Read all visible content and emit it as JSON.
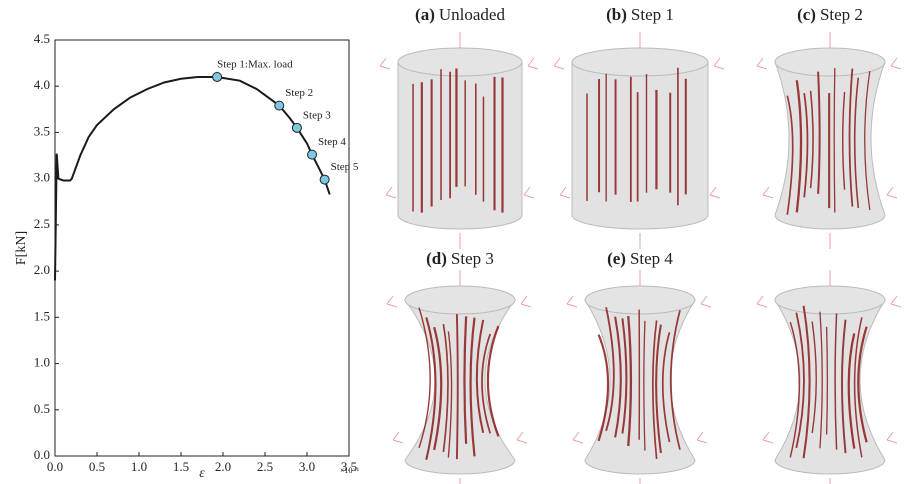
{
  "chart_data": {
    "type": "line",
    "x_label": "ε",
    "y_label": "F[kN]",
    "x_multiplier": "×10⁻¹",
    "x": [
      0.0,
      0.02,
      0.04,
      0.1,
      0.18,
      0.2,
      0.3,
      0.4,
      0.5,
      0.7,
      0.9,
      1.1,
      1.3,
      1.5,
      1.7,
      1.93,
      2.2,
      2.4,
      2.55,
      2.67,
      2.8,
      2.88,
      3.0,
      3.06,
      3.15,
      3.21,
      3.27
    ],
    "y": [
      1.9,
      3.27,
      3.0,
      2.98,
      2.98,
      3.0,
      3.25,
      3.45,
      3.58,
      3.75,
      3.88,
      3.97,
      4.04,
      4.08,
      4.1,
      4.1,
      4.06,
      3.97,
      3.87,
      3.79,
      3.65,
      3.55,
      3.38,
      3.26,
      3.1,
      2.99,
      2.83
    ],
    "color": "#1a1a1a",
    "markers": {
      "x": [
        1.93,
        2.67,
        2.88,
        3.06,
        3.21
      ],
      "y": [
        4.1,
        3.79,
        3.55,
        3.26,
        2.99
      ],
      "labels": [
        "Step 1:Max. load",
        "Step 2",
        "Step 3",
        "Step 4",
        "Step 5"
      ],
      "color": "#7ec8e3"
    },
    "xlim": [
      0,
      3.5
    ],
    "xticks": [
      {
        "value": 0,
        "label": "0.0"
      },
      {
        "value": 0.5,
        "label": "0.5"
      },
      {
        "value": 1,
        "label": "1.0"
      },
      {
        "value": 1.5,
        "label": "1.5"
      },
      {
        "value": 2,
        "label": "2.0"
      },
      {
        "value": 2.5,
        "label": "2.5"
      },
      {
        "value": 3,
        "label": "3.0"
      },
      {
        "value": 3.5,
        "label": "3.5"
      }
    ],
    "ylim": [
      0,
      4.5
    ],
    "yticks": [
      {
        "value": 0,
        "label": "0.0"
      },
      {
        "value": 0.5,
        "label": "0.5"
      },
      {
        "value": 1,
        "label": "1.0"
      },
      {
        "value": 1.5,
        "label": "1.5"
      },
      {
        "value": 2,
        "label": "2.0"
      },
      {
        "value": 2.5,
        "label": "2.5"
      },
      {
        "value": 3,
        "label": "3.0"
      },
      {
        "value": 3.5,
        "label": "3.5"
      },
      {
        "value": 4,
        "label": "4.0"
      },
      {
        "value": 4.5,
        "label": "4.5"
      }
    ]
  },
  "panels": [
    {
      "letter": "(a)",
      "title": "Unloaded"
    },
    {
      "letter": "(b)",
      "title": "Step 1"
    },
    {
      "letter": "(c)",
      "title": "Step 2"
    },
    {
      "letter": "(d)",
      "title": "Step 3"
    },
    {
      "letter": "(e)",
      "title": "Step 4"
    },
    {}
  ]
}
